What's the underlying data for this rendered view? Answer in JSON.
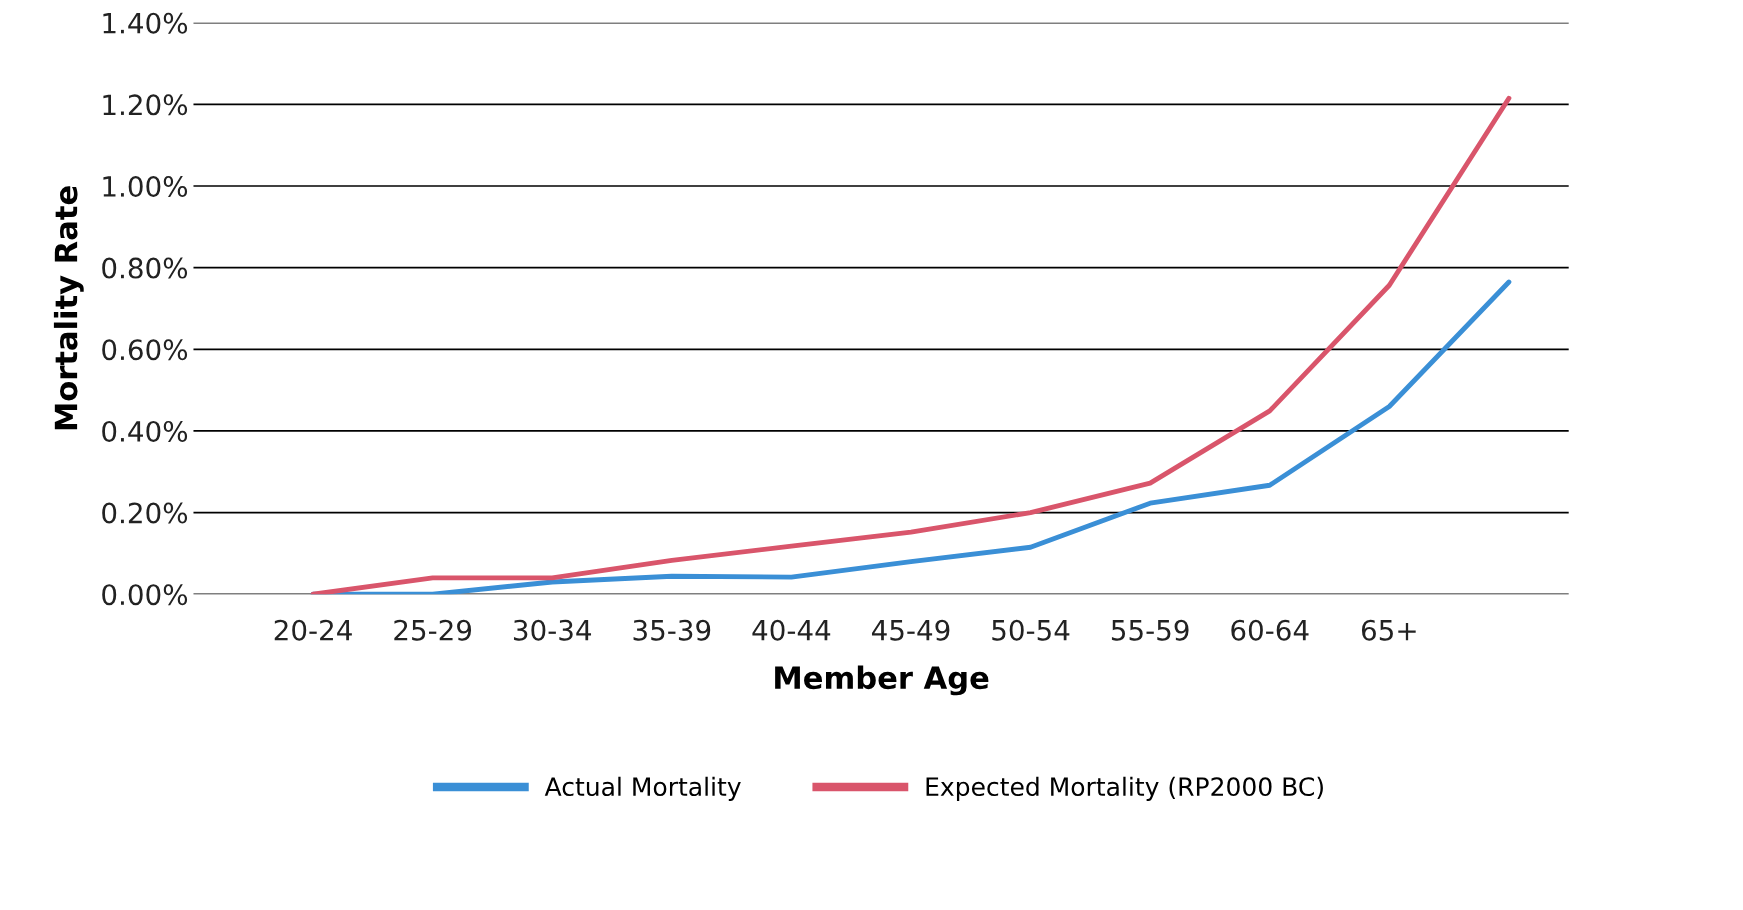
{
  "chart_data": {
    "type": "line",
    "xlabel": "Member Age",
    "ylabel": "Mortality Rate",
    "categories": [
      "20-24",
      "25-29",
      "30-34",
      "35-39",
      "40-44",
      "45-49",
      "50-54",
      "55-59",
      "60-64",
      "65+",
      null
    ],
    "series": [
      {
        "name": "Actual Mortality",
        "color": "#3a8fd6",
        "values": [
          0.0,
          0.0,
          0.03,
          0.044,
          0.042,
          0.08,
          0.115,
          0.223,
          0.267,
          0.46,
          0.765
        ]
      },
      {
        "name": "Expected Mortality (RP2000 BC)",
        "color": "#d9556b",
        "values": [
          0.0,
          0.04,
          0.04,
          0.083,
          0.118,
          0.152,
          0.2,
          0.272,
          0.449,
          0.757,
          1.215
        ]
      }
    ],
    "ylim": [
      0,
      1.4
    ],
    "yticks": [
      {
        "value": 0,
        "label": "0.00%"
      },
      {
        "value": 0.2,
        "label": "0.20%"
      },
      {
        "value": 0.4,
        "label": "0.40%"
      },
      {
        "value": 0.6,
        "label": "0.60%"
      },
      {
        "value": 0.8,
        "label": "0.80%"
      },
      {
        "value": 1.0,
        "label": "1.00%"
      },
      {
        "value": 1.2,
        "label": "1.20%"
      },
      {
        "value": 1.4,
        "label": "1.40%"
      }
    ],
    "grid": "y",
    "legend": "bottom",
    "marker": "none",
    "line_style": "solid"
  }
}
